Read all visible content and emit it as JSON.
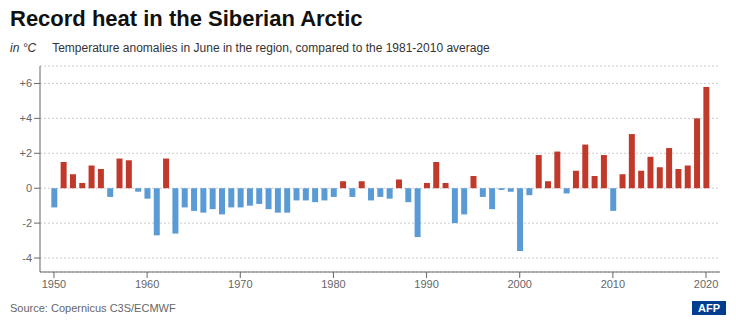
{
  "chart_data": {
    "type": "bar",
    "title": "Record heat in the Siberian Arctic",
    "subtitle": "Temperature anomalies in June in the region, compared to the 1981-2010 average",
    "ylabel": "in °C",
    "annotations": [
      "Source: Copernicus C3S/ECMWF",
      "AFP"
    ],
    "x": [
      1950,
      1951,
      1952,
      1953,
      1954,
      1955,
      1956,
      1957,
      1958,
      1959,
      1960,
      1961,
      1962,
      1963,
      1964,
      1965,
      1966,
      1967,
      1968,
      1969,
      1970,
      1971,
      1972,
      1973,
      1974,
      1975,
      1976,
      1977,
      1978,
      1979,
      1980,
      1981,
      1982,
      1983,
      1984,
      1985,
      1986,
      1987,
      1988,
      1989,
      1990,
      1991,
      1992,
      1993,
      1994,
      1995,
      1996,
      1997,
      1998,
      1999,
      2000,
      2001,
      2002,
      2003,
      2004,
      2005,
      2006,
      2007,
      2008,
      2009,
      2010,
      2011,
      2012,
      2013,
      2014,
      2015,
      2016,
      2017,
      2018,
      2019,
      2020
    ],
    "values": [
      -1.1,
      1.5,
      0.8,
      0.3,
      1.3,
      1.1,
      -0.5,
      1.7,
      1.6,
      -0.2,
      -0.6,
      -2.7,
      1.7,
      -2.6,
      -1.1,
      -1.3,
      -1.4,
      -1.2,
      -1.5,
      -1.1,
      -1.1,
      -1.0,
      -0.9,
      -1.2,
      -1.4,
      -1.4,
      -0.7,
      -0.7,
      -0.8,
      -0.7,
      -0.5,
      0.4,
      -0.5,
      0.4,
      -0.7,
      -0.5,
      -0.6,
      0.5,
      -0.8,
      -2.8,
      0.3,
      1.5,
      0.3,
      -2.0,
      -1.5,
      0.7,
      -0.5,
      -1.2,
      -0.1,
      -0.2,
      -3.6,
      -0.4,
      1.9,
      0.4,
      2.1,
      -0.3,
      1.0,
      2.5,
      0.7,
      1.9,
      -1.3,
      0.8,
      3.1,
      1.0,
      1.8,
      1.2,
      2.3,
      1.1,
      1.3,
      4.0,
      5.8
    ],
    "colors": [
      "#5b9bd5",
      "#c0392b",
      "#c0392b",
      "#c0392b",
      "#c0392b",
      "#c0392b",
      "#5b9bd5",
      "#c0392b",
      "#c0392b",
      "#5b9bd5",
      "#5b9bd5",
      "#5b9bd5",
      "#c0392b",
      "#5b9bd5",
      "#5b9bd5",
      "#5b9bd5",
      "#5b9bd5",
      "#5b9bd5",
      "#5b9bd5",
      "#5b9bd5",
      "#5b9bd5",
      "#5b9bd5",
      "#5b9bd5",
      "#5b9bd5",
      "#5b9bd5",
      "#5b9bd5",
      "#5b9bd5",
      "#5b9bd5",
      "#5b9bd5",
      "#5b9bd5",
      "#5b9bd5",
      "#c0392b",
      "#5b9bd5",
      "#c0392b",
      "#5b9bd5",
      "#5b9bd5",
      "#5b9bd5",
      "#c0392b",
      "#5b9bd5",
      "#5b9bd5",
      "#c0392b",
      "#c0392b",
      "#c0392b",
      "#5b9bd5",
      "#5b9bd5",
      "#c0392b",
      "#5b9bd5",
      "#5b9bd5",
      "#5b9bd5",
      "#5b9bd5",
      "#5b9bd5",
      "#5b9bd5",
      "#c0392b",
      "#c0392b",
      "#c0392b",
      "#5b9bd5",
      "#c0392b",
      "#c0392b",
      "#c0392b",
      "#c0392b",
      "#5b9bd5",
      "#c0392b",
      "#c0392b",
      "#c0392b",
      "#c0392b",
      "#c0392b",
      "#c0392b",
      "#c0392b",
      "#c0392b",
      "#c0392b",
      "#c0392b"
    ],
    "xlim": [
      1948.5,
      2021.5
    ],
    "xticks": [
      1950,
      1960,
      1970,
      1980,
      1990,
      2000,
      2010,
      2020
    ],
    "ylim": [
      -4.8,
      7.0
    ],
    "yticks": [
      -4,
      -2,
      0,
      {
        "value": 2,
        "label": "+2"
      },
      {
        "value": 4,
        "label": "+4"
      },
      {
        "value": 6,
        "label": "+6"
      }
    ],
    "grid": true
  }
}
